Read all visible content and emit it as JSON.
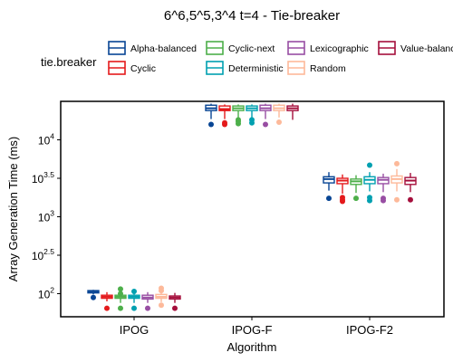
{
  "chart_data": {
    "type": "box",
    "title": "6^6,5^5,3^4 t=4 - Tie-breaker",
    "xlabel": "Algorithm",
    "ylabel": "Array Generation Time (ms)",
    "y_scale": "log10",
    "ylim_log10": [
      1.7,
      4.5
    ],
    "yticks": [
      {
        "log10": 2.0,
        "base": "10",
        "exp": "2"
      },
      {
        "log10": 2.5,
        "base": "10",
        "exp": "2.5"
      },
      {
        "log10": 3.0,
        "base": "10",
        "exp": "3"
      },
      {
        "log10": 3.5,
        "base": "10",
        "exp": "3.5"
      },
      {
        "log10": 4.0,
        "base": "10",
        "exp": "4"
      }
    ],
    "categories": [
      "IPOG",
      "IPOG-F",
      "IPOG-F2"
    ],
    "legend": {
      "title": "tie.breaker",
      "position": "top",
      "entries": [
        {
          "label": "Alpha-balanced",
          "color": "#084594"
        },
        {
          "label": "Cyclic",
          "color": "#e41a1c"
        },
        {
          "label": "Cyclic-next",
          "color": "#4daf4a"
        },
        {
          "label": "Deterministic",
          "color": "#00a0b0"
        },
        {
          "label": "Lexicographic",
          "color": "#984ea3"
        },
        {
          "label": "Random",
          "color": "#fdb99a"
        },
        {
          "label": "Value-balanced",
          "color": "#a50f3c"
        }
      ]
    },
    "series": [
      {
        "name": "Alpha-balanced",
        "boxes": [
          {
            "whisker_low": 1.99,
            "q1": 2.01,
            "median": 2.03,
            "q3": 2.04,
            "whisker_high": 2.05,
            "outliers": [
              1.95
            ]
          },
          {
            "whisker_low": 4.27,
            "q1": 4.38,
            "median": 4.41,
            "q3": 4.45,
            "whisker_high": 4.47,
            "outliers": [
              4.2
            ]
          },
          {
            "whisker_low": 3.34,
            "q1": 3.44,
            "median": 3.49,
            "q3": 3.52,
            "whisker_high": 3.58,
            "outliers": [
              3.24
            ]
          }
        ]
      },
      {
        "name": "Cyclic",
        "boxes": [
          {
            "whisker_low": 1.9,
            "q1": 1.94,
            "median": 1.96,
            "q3": 1.98,
            "whisker_high": 2.02,
            "outliers": [
              1.81
            ]
          },
          {
            "whisker_low": 4.27,
            "q1": 4.38,
            "median": 4.4,
            "q3": 4.44,
            "whisker_high": 4.46,
            "outliers": [
              4.2,
              4.22
            ]
          },
          {
            "whisker_low": 3.3,
            "q1": 3.43,
            "median": 3.47,
            "q3": 3.5,
            "whisker_high": 3.55,
            "outliers": [
              3.2,
              3.22,
              3.25
            ]
          }
        ]
      },
      {
        "name": "Cyclic-next",
        "boxes": [
          {
            "whisker_low": 1.88,
            "q1": 1.94,
            "median": 1.96,
            "q3": 1.98,
            "whisker_high": 2.02,
            "outliers": [
              1.81,
              2.0,
              2.06
            ]
          },
          {
            "whisker_low": 4.28,
            "q1": 4.38,
            "median": 4.41,
            "q3": 4.44,
            "whisker_high": 4.46,
            "outliers": [
              4.21,
              4.24,
              4.26
            ]
          },
          {
            "whisker_low": 3.31,
            "q1": 3.42,
            "median": 3.46,
            "q3": 3.49,
            "whisker_high": 3.54,
            "outliers": [
              3.24
            ]
          }
        ]
      },
      {
        "name": "Deterministic",
        "boxes": [
          {
            "whisker_low": 1.88,
            "q1": 1.94,
            "median": 1.96,
            "q3": 1.98,
            "whisker_high": 2.02,
            "outliers": [
              1.81,
              2.03
            ]
          },
          {
            "whisker_low": 4.28,
            "q1": 4.38,
            "median": 4.41,
            "q3": 4.44,
            "whisker_high": 4.46,
            "outliers": [
              4.22,
              4.26
            ]
          },
          {
            "whisker_low": 3.33,
            "q1": 3.43,
            "median": 3.48,
            "q3": 3.52,
            "whisker_high": 3.58,
            "outliers": [
              3.21,
              3.25,
              3.67
            ]
          }
        ]
      },
      {
        "name": "Lexicographic",
        "boxes": [
          {
            "whisker_low": 1.88,
            "q1": 1.93,
            "median": 1.95,
            "q3": 1.98,
            "whisker_high": 2.02,
            "outliers": [
              1.81
            ]
          },
          {
            "whisker_low": 4.27,
            "q1": 4.38,
            "median": 4.41,
            "q3": 4.45,
            "whisker_high": 4.47,
            "outliers": [
              4.2
            ]
          },
          {
            "whisker_low": 3.32,
            "q1": 3.43,
            "median": 3.48,
            "q3": 3.51,
            "whisker_high": 3.56,
            "outliers": [
              3.21,
              3.24
            ]
          }
        ]
      },
      {
        "name": "Random",
        "boxes": [
          {
            "whisker_low": 1.89,
            "q1": 1.94,
            "median": 1.96,
            "q3": 1.99,
            "whisker_high": 2.03,
            "outliers": [
              1.85,
              2.04,
              2.07
            ]
          },
          {
            "whisker_low": 4.29,
            "q1": 4.38,
            "median": 4.41,
            "q3": 4.45,
            "whisker_high": 4.47,
            "outliers": [
              4.23
            ]
          },
          {
            "whisker_low": 3.33,
            "q1": 3.44,
            "median": 3.49,
            "q3": 3.53,
            "whisker_high": 3.62,
            "outliers": [
              3.22,
              3.69
            ]
          }
        ]
      },
      {
        "name": "Value-balanced",
        "boxes": [
          {
            "whisker_low": 1.88,
            "q1": 1.93,
            "median": 1.95,
            "q3": 1.97,
            "whisker_high": 2.01,
            "outliers": [
              1.81
            ]
          },
          {
            "whisker_low": 4.26,
            "q1": 4.38,
            "median": 4.41,
            "q3": 4.44,
            "whisker_high": 4.47,
            "outliers": []
          },
          {
            "whisker_low": 3.32,
            "q1": 3.42,
            "median": 3.47,
            "q3": 3.51,
            "whisker_high": 3.57,
            "outliers": [
              3.22
            ]
          }
        ]
      }
    ]
  }
}
